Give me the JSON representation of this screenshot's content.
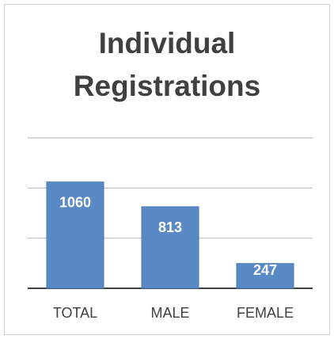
{
  "chart_data": {
    "type": "bar",
    "title": "Individual Registrations",
    "categories": [
      "TOTAL",
      "MALE",
      "FEMALE"
    ],
    "values": [
      1060,
      813,
      247
    ],
    "color": "#5a8ac6",
    "ylim": [
      0,
      1500
    ],
    "yticks": [
      0,
      500,
      1000,
      1500
    ],
    "grid": true
  }
}
